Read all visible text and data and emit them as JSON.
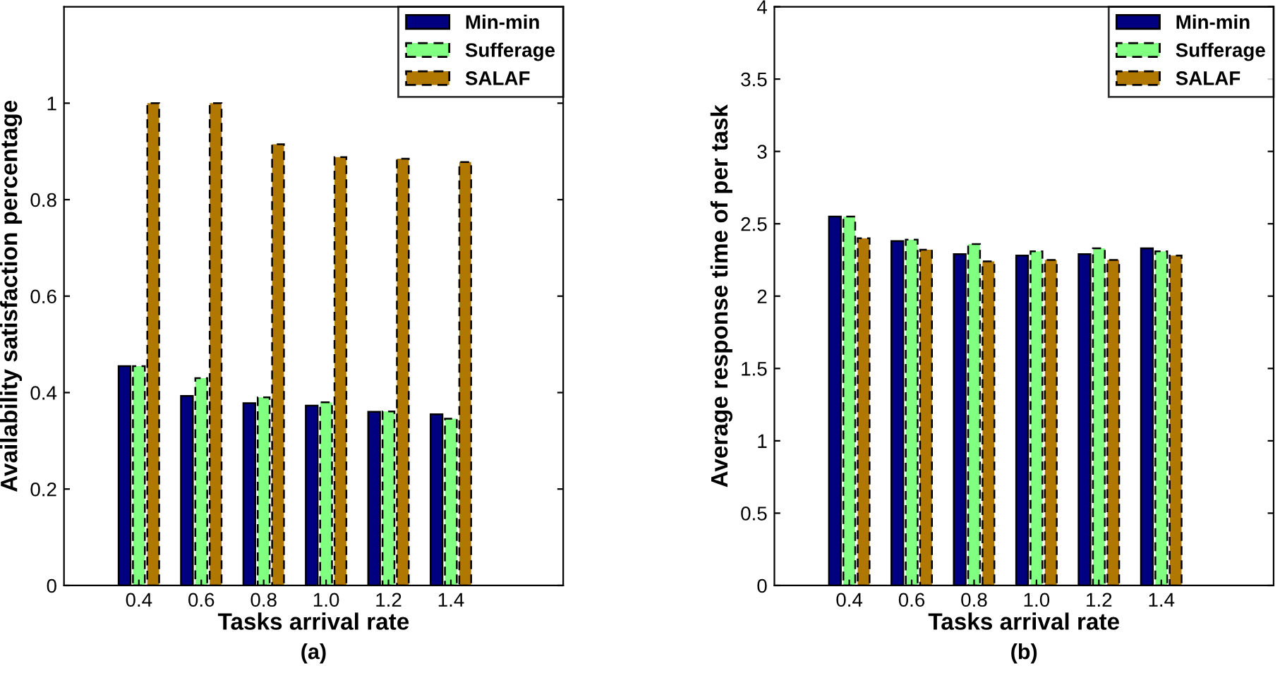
{
  "chart_data": [
    {
      "type": "bar",
      "xlabel": "Tasks arrival rate",
      "ylabel": "Availability satisfaction percentage",
      "annotations": [
        "(a)"
      ],
      "categories": [
        "0.4",
        "0.6",
        "0.8",
        "1.0",
        "1.2",
        "1.4"
      ],
      "ylim": [
        0,
        1.2
      ],
      "yticks": [
        0,
        0.2,
        0.4,
        0.6,
        0.8,
        1
      ],
      "legend": "top right",
      "grid": false,
      "series": [
        {
          "name": "Min-min",
          "color": "#000080",
          "line_style": "solid",
          "values": [
            0.455,
            0.393,
            0.378,
            0.373,
            0.36,
            0.355
          ]
        },
        {
          "name": "Sufferage",
          "color": "#80ff80",
          "line_style": "dashed",
          "values": [
            0.455,
            0.43,
            0.39,
            0.38,
            0.361,
            0.346
          ]
        },
        {
          "name": "SALAF",
          "color": "#b07800",
          "line_style": "dashed",
          "values": [
            1.0,
            1.0,
            0.915,
            0.888,
            0.885,
            0.878
          ]
        }
      ]
    },
    {
      "type": "bar",
      "xlabel": "Tasks arrival rate",
      "ylabel": "Average response time of per task",
      "annotations": [
        "(b)"
      ],
      "categories": [
        "0.4",
        "0.6",
        "0.8",
        "1.0",
        "1.2",
        "1.4"
      ],
      "ylim": [
        0,
        4
      ],
      "yticks": [
        0,
        0.5,
        1,
        1.5,
        2,
        2.5,
        3,
        3.5,
        4
      ],
      "legend": "top right",
      "grid": false,
      "series": [
        {
          "name": "Min-min",
          "color": "#000080",
          "line_style": "solid",
          "values": [
            2.55,
            2.38,
            2.29,
            2.28,
            2.29,
            2.33
          ]
        },
        {
          "name": "Sufferage",
          "color": "#80ff80",
          "line_style": "dashed",
          "values": [
            2.55,
            2.39,
            2.36,
            2.31,
            2.33,
            2.31
          ]
        },
        {
          "name": "SALAF",
          "color": "#b07800",
          "line_style": "dashed",
          "values": [
            2.4,
            2.32,
            2.24,
            2.25,
            2.25,
            2.28
          ]
        }
      ]
    }
  ]
}
